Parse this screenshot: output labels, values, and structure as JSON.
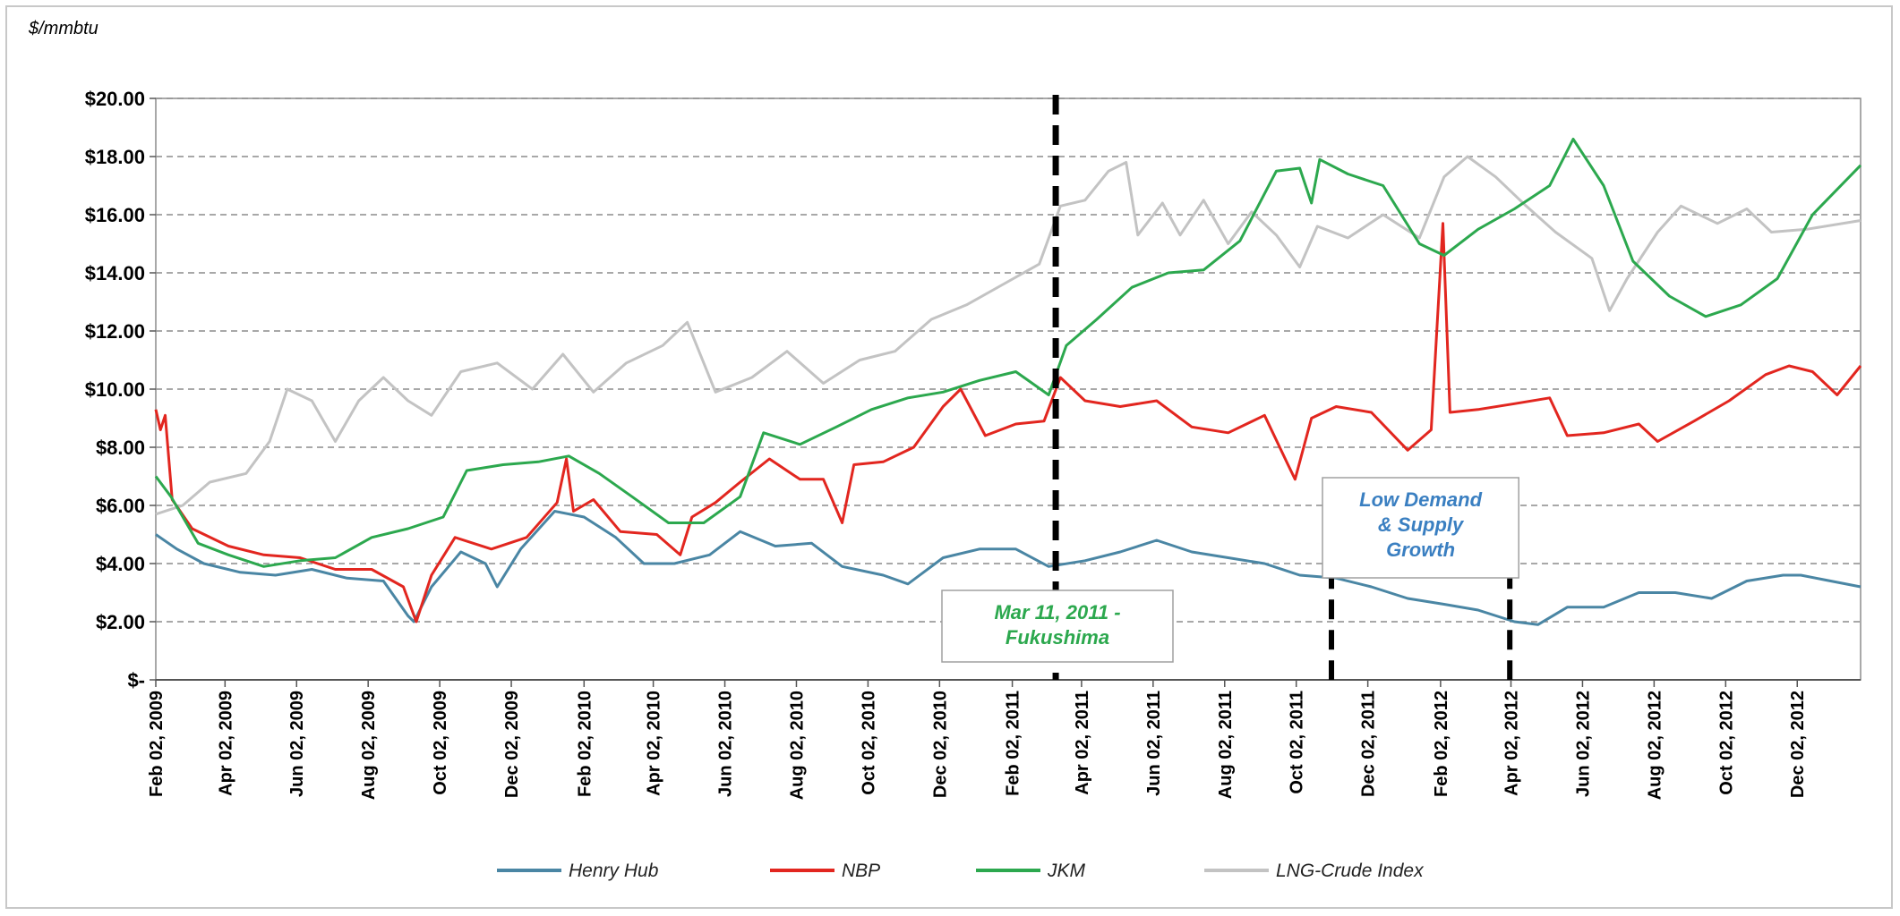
{
  "chart_data": {
    "type": "line",
    "ylabel": "$/mmbtu",
    "ylim": [
      0,
      20
    ],
    "yticks": [
      {
        "value": 0,
        "label": "$-"
      },
      {
        "value": 2,
        "label": "$2.00"
      },
      {
        "value": 4,
        "label": "$4.00"
      },
      {
        "value": 6,
        "label": "$6.00"
      },
      {
        "value": 8,
        "label": "$8.00"
      },
      {
        "value": 10,
        "label": "$10.00"
      },
      {
        "value": 12,
        "label": "$12.00"
      },
      {
        "value": 14,
        "label": "$14.00"
      },
      {
        "value": 16,
        "label": "$16.00"
      },
      {
        "value": 18,
        "label": "$18.00"
      },
      {
        "value": 20,
        "label": "$20.00"
      }
    ],
    "xlim": [
      "2009-02-02",
      "2013-01-25"
    ],
    "xticks": [
      {
        "date": "2009-02-02",
        "label": "Feb 02, 2009"
      },
      {
        "date": "2009-04-02",
        "label": "Apr 02, 2009"
      },
      {
        "date": "2009-06-02",
        "label": "Jun 02, 2009"
      },
      {
        "date": "2009-08-02",
        "label": "Aug 02, 2009"
      },
      {
        "date": "2009-10-02",
        "label": "Oct 02, 2009"
      },
      {
        "date": "2009-12-02",
        "label": "Dec 02, 2009"
      },
      {
        "date": "2010-02-02",
        "label": "Feb 02, 2010"
      },
      {
        "date": "2010-04-02",
        "label": "Apr 02, 2010"
      },
      {
        "date": "2010-06-02",
        "label": "Jun 02, 2010"
      },
      {
        "date": "2010-08-02",
        "label": "Aug 02, 2010"
      },
      {
        "date": "2010-10-02",
        "label": "Oct 02, 2010"
      },
      {
        "date": "2010-12-02",
        "label": "Dec 02, 2010"
      },
      {
        "date": "2011-02-02",
        "label": "Feb 02, 2011"
      },
      {
        "date": "2011-04-02",
        "label": "Apr 02, 2011"
      },
      {
        "date": "2011-06-02",
        "label": "Jun 02, 2011"
      },
      {
        "date": "2011-08-02",
        "label": "Aug 02, 2011"
      },
      {
        "date": "2011-10-02",
        "label": "Oct 02, 2011"
      },
      {
        "date": "2011-12-02",
        "label": "Dec 02, 2011"
      },
      {
        "date": "2012-02-02",
        "label": "Feb 02, 2012"
      },
      {
        "date": "2012-04-02",
        "label": "Apr 02, 2012"
      },
      {
        "date": "2012-06-02",
        "label": "Jun 02, 2012"
      },
      {
        "date": "2012-08-02",
        "label": "Aug 02, 2012"
      },
      {
        "date": "2012-10-02",
        "label": "Oct 02, 2012"
      },
      {
        "date": "2012-12-02",
        "label": "Dec 02, 2012"
      }
    ],
    "grid": "horizontal dashed",
    "legend": "bottom",
    "series": [
      {
        "name": "Henry Hub",
        "color": "#4a86a4",
        "points": [
          [
            "2009-02-02",
            5.0
          ],
          [
            "2009-02-20",
            4.5
          ],
          [
            "2009-03-15",
            4.0
          ],
          [
            "2009-04-15",
            3.7
          ],
          [
            "2009-05-15",
            3.6
          ],
          [
            "2009-06-15",
            3.8
          ],
          [
            "2009-07-15",
            3.5
          ],
          [
            "2009-08-15",
            3.4
          ],
          [
            "2009-09-05",
            2.2
          ],
          [
            "2009-09-10",
            2.0
          ],
          [
            "2009-09-25",
            3.2
          ],
          [
            "2009-10-20",
            4.4
          ],
          [
            "2009-11-10",
            4.0
          ],
          [
            "2009-11-20",
            3.2
          ],
          [
            "2009-12-10",
            4.5
          ],
          [
            "2010-01-08",
            5.8
          ],
          [
            "2010-02-02",
            5.6
          ],
          [
            "2010-03-01",
            4.9
          ],
          [
            "2010-03-25",
            4.0
          ],
          [
            "2010-04-20",
            4.0
          ],
          [
            "2010-05-20",
            4.3
          ],
          [
            "2010-06-15",
            5.1
          ],
          [
            "2010-07-15",
            4.6
          ],
          [
            "2010-08-15",
            4.7
          ],
          [
            "2010-09-10",
            3.9
          ],
          [
            "2010-10-15",
            3.6
          ],
          [
            "2010-11-05",
            3.3
          ],
          [
            "2010-12-05",
            4.2
          ],
          [
            "2011-01-05",
            4.5
          ],
          [
            "2011-02-05",
            4.5
          ],
          [
            "2011-03-05",
            3.9
          ],
          [
            "2011-04-05",
            4.1
          ],
          [
            "2011-05-05",
            4.4
          ],
          [
            "2011-06-05",
            4.8
          ],
          [
            "2011-07-05",
            4.4
          ],
          [
            "2011-08-05",
            4.2
          ],
          [
            "2011-09-05",
            4.0
          ],
          [
            "2011-10-05",
            3.6
          ],
          [
            "2011-11-05",
            3.5
          ],
          [
            "2011-12-05",
            3.2
          ],
          [
            "2012-01-05",
            2.8
          ],
          [
            "2012-02-05",
            2.6
          ],
          [
            "2012-03-05",
            2.4
          ],
          [
            "2012-04-05",
            2.0
          ],
          [
            "2012-04-25",
            1.9
          ],
          [
            "2012-05-20",
            2.5
          ],
          [
            "2012-06-20",
            2.5
          ],
          [
            "2012-07-20",
            3.0
          ],
          [
            "2012-08-20",
            3.0
          ],
          [
            "2012-09-20",
            2.8
          ],
          [
            "2012-10-20",
            3.4
          ],
          [
            "2012-11-20",
            3.6
          ],
          [
            "2012-12-05",
            3.6
          ],
          [
            "2013-01-25",
            3.2
          ]
        ]
      },
      {
        "name": "NBP",
        "color": "#e2261f",
        "points": [
          [
            "2009-02-02",
            9.3
          ],
          [
            "2009-02-06",
            8.6
          ],
          [
            "2009-02-10",
            9.1
          ],
          [
            "2009-02-16",
            6.2
          ],
          [
            "2009-03-05",
            5.2
          ],
          [
            "2009-04-05",
            4.6
          ],
          [
            "2009-05-05",
            4.3
          ],
          [
            "2009-06-05",
            4.2
          ],
          [
            "2009-07-05",
            3.8
          ],
          [
            "2009-08-05",
            3.8
          ],
          [
            "2009-09-01",
            3.2
          ],
          [
            "2009-09-12",
            2.0
          ],
          [
            "2009-09-25",
            3.6
          ],
          [
            "2009-10-15",
            4.9
          ],
          [
            "2009-11-15",
            4.5
          ],
          [
            "2009-12-15",
            4.9
          ],
          [
            "2010-01-10",
            6.1
          ],
          [
            "2010-01-18",
            7.6
          ],
          [
            "2010-01-24",
            5.8
          ],
          [
            "2010-02-10",
            6.2
          ],
          [
            "2010-03-05",
            5.1
          ],
          [
            "2010-04-05",
            5.0
          ],
          [
            "2010-04-25",
            4.3
          ],
          [
            "2010-05-05",
            5.6
          ],
          [
            "2010-05-25",
            6.1
          ],
          [
            "2010-06-15",
            6.8
          ],
          [
            "2010-07-10",
            7.6
          ],
          [
            "2010-08-05",
            6.9
          ],
          [
            "2010-08-25",
            6.9
          ],
          [
            "2010-09-10",
            5.4
          ],
          [
            "2010-09-20",
            7.4
          ],
          [
            "2010-10-15",
            7.5
          ],
          [
            "2010-11-10",
            8.0
          ],
          [
            "2010-12-05",
            9.4
          ],
          [
            "2010-12-20",
            10.0
          ],
          [
            "2011-01-10",
            8.4
          ],
          [
            "2011-02-05",
            8.8
          ],
          [
            "2011-03-01",
            8.9
          ],
          [
            "2011-03-15",
            10.4
          ],
          [
            "2011-04-05",
            9.6
          ],
          [
            "2011-05-05",
            9.4
          ],
          [
            "2011-06-05",
            9.6
          ],
          [
            "2011-07-05",
            8.7
          ],
          [
            "2011-08-05",
            8.5
          ],
          [
            "2011-09-05",
            9.1
          ],
          [
            "2011-09-25",
            7.4
          ],
          [
            "2011-10-01",
            6.9
          ],
          [
            "2011-10-15",
            9.0
          ],
          [
            "2011-11-05",
            9.4
          ],
          [
            "2011-12-05",
            9.2
          ],
          [
            "2012-01-05",
            7.9
          ],
          [
            "2012-01-25",
            8.6
          ],
          [
            "2012-02-04",
            15.7
          ],
          [
            "2012-02-10",
            9.2
          ],
          [
            "2012-03-05",
            9.3
          ],
          [
            "2012-04-05",
            9.5
          ],
          [
            "2012-05-05",
            9.7
          ],
          [
            "2012-05-20",
            8.4
          ],
          [
            "2012-06-20",
            8.5
          ],
          [
            "2012-07-20",
            8.8
          ],
          [
            "2012-08-05",
            8.2
          ],
          [
            "2012-09-05",
            8.9
          ],
          [
            "2012-10-05",
            9.6
          ],
          [
            "2012-11-05",
            10.5
          ],
          [
            "2012-11-25",
            10.8
          ],
          [
            "2012-12-15",
            10.6
          ],
          [
            "2013-01-05",
            9.8
          ],
          [
            "2013-01-25",
            10.8
          ]
        ]
      },
      {
        "name": "JKM",
        "color": "#2ca84e",
        "points": [
          [
            "2009-02-02",
            7.0
          ],
          [
            "2009-02-15",
            6.3
          ],
          [
            "2009-03-10",
            4.7
          ],
          [
            "2009-04-05",
            4.3
          ],
          [
            "2009-05-05",
            3.9
          ],
          [
            "2009-06-05",
            4.1
          ],
          [
            "2009-07-05",
            4.2
          ],
          [
            "2009-08-05",
            4.9
          ],
          [
            "2009-09-05",
            5.2
          ],
          [
            "2009-10-05",
            5.6
          ],
          [
            "2009-10-25",
            7.2
          ],
          [
            "2009-11-25",
            7.4
          ],
          [
            "2009-12-25",
            7.5
          ],
          [
            "2010-01-20",
            7.7
          ],
          [
            "2010-02-15",
            7.1
          ],
          [
            "2010-03-15",
            6.3
          ],
          [
            "2010-04-15",
            5.4
          ],
          [
            "2010-05-15",
            5.4
          ],
          [
            "2010-06-15",
            6.3
          ],
          [
            "2010-07-05",
            8.5
          ],
          [
            "2010-08-05",
            8.1
          ],
          [
            "2010-09-05",
            8.7
          ],
          [
            "2010-10-05",
            9.3
          ],
          [
            "2010-11-05",
            9.7
          ],
          [
            "2010-12-05",
            9.9
          ],
          [
            "2011-01-05",
            10.3
          ],
          [
            "2011-02-05",
            10.6
          ],
          [
            "2011-03-05",
            9.8
          ],
          [
            "2011-03-20",
            11.5
          ],
          [
            "2011-04-15",
            12.4
          ],
          [
            "2011-05-15",
            13.5
          ],
          [
            "2011-06-15",
            14.0
          ],
          [
            "2011-07-15",
            14.1
          ],
          [
            "2011-08-15",
            15.1
          ],
          [
            "2011-09-15",
            17.5
          ],
          [
            "2011-10-05",
            17.6
          ],
          [
            "2011-10-15",
            16.4
          ],
          [
            "2011-10-22",
            17.9
          ],
          [
            "2011-11-15",
            17.4
          ],
          [
            "2011-12-15",
            17.0
          ],
          [
            "2012-01-15",
            15.0
          ],
          [
            "2012-02-05",
            14.6
          ],
          [
            "2012-03-05",
            15.5
          ],
          [
            "2012-04-05",
            16.2
          ],
          [
            "2012-05-05",
            17.0
          ],
          [
            "2012-05-25",
            18.6
          ],
          [
            "2012-06-20",
            17.0
          ],
          [
            "2012-07-15",
            14.4
          ],
          [
            "2012-08-15",
            13.2
          ],
          [
            "2012-09-15",
            12.5
          ],
          [
            "2012-10-15",
            12.9
          ],
          [
            "2012-11-15",
            13.8
          ],
          [
            "2012-12-15",
            16.0
          ],
          [
            "2013-01-25",
            17.7
          ]
        ]
      },
      {
        "name": "LNG-Crude Index",
        "color": "#c3c3c3",
        "points": [
          [
            "2009-02-02",
            5.7
          ],
          [
            "2009-02-25",
            6.0
          ],
          [
            "2009-03-20",
            6.8
          ],
          [
            "2009-04-20",
            7.1
          ],
          [
            "2009-05-10",
            8.2
          ],
          [
            "2009-05-25",
            10.0
          ],
          [
            "2009-06-15",
            9.6
          ],
          [
            "2009-07-05",
            8.2
          ],
          [
            "2009-07-25",
            9.6
          ],
          [
            "2009-08-15",
            10.4
          ],
          [
            "2009-09-05",
            9.6
          ],
          [
            "2009-09-25",
            9.1
          ],
          [
            "2009-10-20",
            10.6
          ],
          [
            "2009-11-20",
            10.9
          ],
          [
            "2009-12-20",
            10.0
          ],
          [
            "2010-01-15",
            11.2
          ],
          [
            "2010-02-10",
            9.9
          ],
          [
            "2010-03-10",
            10.9
          ],
          [
            "2010-04-10",
            11.5
          ],
          [
            "2010-05-01",
            12.3
          ],
          [
            "2010-05-25",
            9.9
          ],
          [
            "2010-06-25",
            10.4
          ],
          [
            "2010-07-25",
            11.3
          ],
          [
            "2010-08-25",
            10.2
          ],
          [
            "2010-09-25",
            11.0
          ],
          [
            "2010-10-25",
            11.3
          ],
          [
            "2010-11-25",
            12.4
          ],
          [
            "2010-12-25",
            12.9
          ],
          [
            "2011-01-25",
            13.6
          ],
          [
            "2011-02-25",
            14.3
          ],
          [
            "2011-03-15",
            16.3
          ],
          [
            "2011-04-05",
            16.5
          ],
          [
            "2011-04-25",
            17.5
          ],
          [
            "2011-05-10",
            17.8
          ],
          [
            "2011-05-20",
            15.3
          ],
          [
            "2011-06-10",
            16.4
          ],
          [
            "2011-06-25",
            15.3
          ],
          [
            "2011-07-15",
            16.5
          ],
          [
            "2011-08-05",
            15.0
          ],
          [
            "2011-08-25",
            16.1
          ],
          [
            "2011-09-15",
            15.3
          ],
          [
            "2011-10-05",
            14.2
          ],
          [
            "2011-10-20",
            15.6
          ],
          [
            "2011-11-15",
            15.2
          ],
          [
            "2011-12-15",
            16.0
          ],
          [
            "2012-01-15",
            15.2
          ],
          [
            "2012-02-05",
            17.3
          ],
          [
            "2012-02-25",
            18.0
          ],
          [
            "2012-03-20",
            17.3
          ],
          [
            "2012-04-15",
            16.3
          ],
          [
            "2012-05-10",
            15.4
          ],
          [
            "2012-06-10",
            14.5
          ],
          [
            "2012-06-25",
            12.7
          ],
          [
            "2012-07-10",
            13.8
          ],
          [
            "2012-08-05",
            15.4
          ],
          [
            "2012-08-25",
            16.3
          ],
          [
            "2012-09-25",
            15.7
          ],
          [
            "2012-10-20",
            16.2
          ],
          [
            "2012-11-10",
            15.4
          ],
          [
            "2012-12-10",
            15.5
          ],
          [
            "2013-01-25",
            15.8
          ]
        ]
      }
    ],
    "annotations": [
      {
        "id": "fukushima",
        "date": "2011-03-11",
        "text_lines": [
          "Mar 11, 2011 -",
          "Fukushima"
        ],
        "color": "#2ca84e"
      },
      {
        "id": "low-demand-start",
        "date": "2011-11-01"
      },
      {
        "id": "low-demand-end",
        "date": "2012-04-01",
        "text_lines": [
          "Low Demand",
          "& Supply",
          "Growth"
        ],
        "color": "#3a7fc1"
      }
    ]
  }
}
